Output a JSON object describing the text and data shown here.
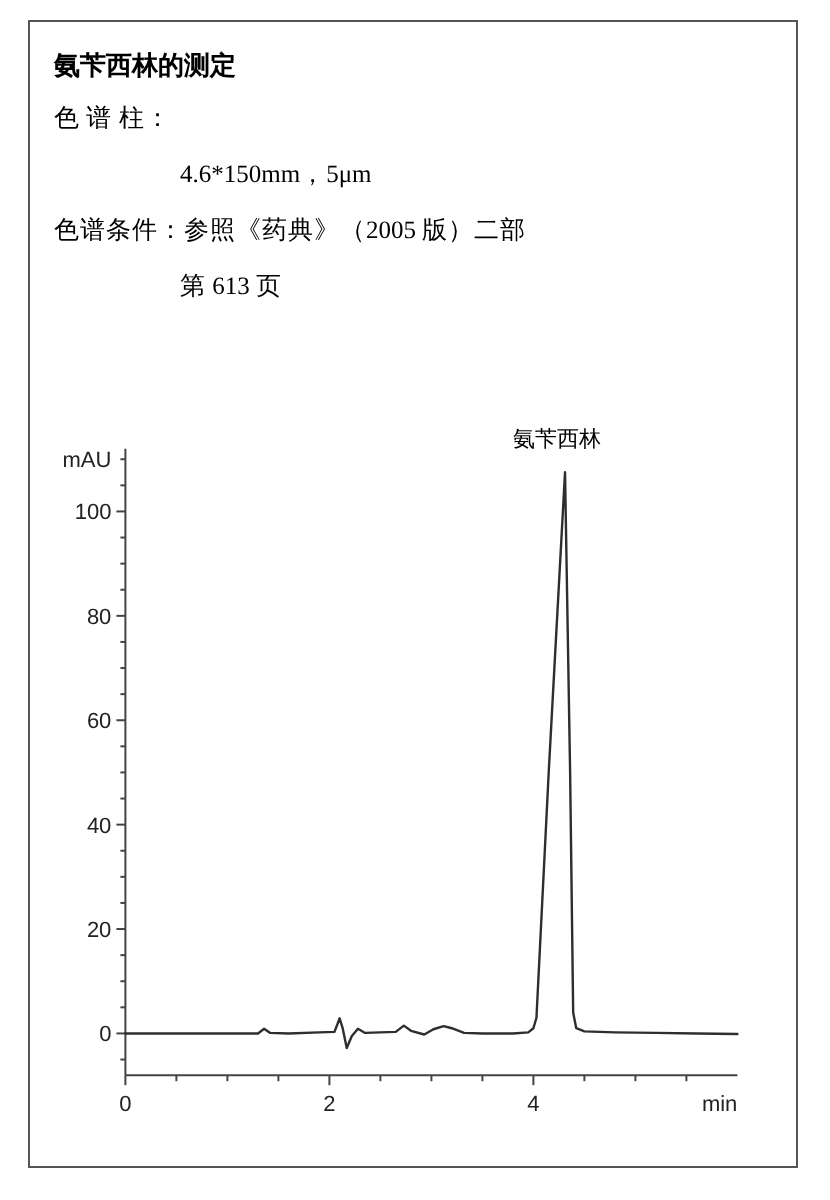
{
  "chart_data": {
    "type": "line",
    "title": "氨苄西林的测定",
    "annotations": [
      "色 谱 柱：",
      "4.6*150mm，5μm",
      "色谱条件：参照《药典》（2005 版）二部",
      "第 613 页",
      {
        "text": "氨苄西林",
        "x": 4.31,
        "y": 107.5
      }
    ],
    "xlabel": "min",
    "ylabel": "mAU",
    "color": "#2e2e2e",
    "x": [
      0,
      0.5,
      1.0,
      1.3,
      1.36,
      1.42,
      1.6,
      1.9,
      2.05,
      2.1,
      2.13,
      2.17,
      2.22,
      2.28,
      2.35,
      2.5,
      2.65,
      2.73,
      2.8,
      2.93,
      3.02,
      3.12,
      3.2,
      3.32,
      3.5,
      3.8,
      3.95,
      4.0,
      4.03,
      4.15,
      4.31,
      4.36,
      4.39,
      4.42,
      4.5,
      4.8,
      5.2,
      5.6,
      6.0
    ],
    "values": [
      0,
      0,
      0,
      0,
      0.9,
      0.1,
      0,
      0.2,
      0.3,
      2.9,
      1.0,
      -2.8,
      -0.5,
      0.9,
      0.1,
      0.2,
      0.3,
      1.5,
      0.5,
      -0.2,
      0.8,
      1.4,
      1.0,
      0.1,
      0,
      0,
      0.2,
      1.0,
      3.0,
      50,
      107.5,
      50,
      4,
      1.0,
      0.4,
      0.2,
      0.1,
      0,
      -0.1
    ],
    "xlim": [
      0,
      6
    ],
    "ylim": [
      -8,
      112
    ],
    "xticks": [
      0,
      {
        "value": 0.5,
        "label": null
      },
      {
        "value": 1,
        "label": null
      },
      {
        "value": 1.5,
        "label": null
      },
      2,
      {
        "value": 2.5,
        "label": null
      },
      {
        "value": 3,
        "label": null
      },
      {
        "value": 3.5,
        "label": null
      },
      4,
      {
        "value": 4.5,
        "label": null
      },
      {
        "value": 5,
        "label": null
      },
      {
        "value": 5.5,
        "label": null
      }
    ],
    "yticks": [
      {
        "value": -5,
        "label": null
      },
      0,
      {
        "value": 5,
        "label": null
      },
      {
        "value": 10,
        "label": null
      },
      {
        "value": 15,
        "label": null
      },
      20,
      {
        "value": 25,
        "label": null
      },
      {
        "value": 30,
        "label": null
      },
      {
        "value": 35,
        "label": null
      },
      40,
      {
        "value": 45,
        "label": null
      },
      {
        "value": 50,
        "label": null
      },
      {
        "value": 55,
        "label": null
      },
      60,
      {
        "value": 65,
        "label": null
      },
      {
        "value": 70,
        "label": null
      },
      {
        "value": 75,
        "label": null
      },
      80,
      {
        "value": 85,
        "label": null
      },
      {
        "value": 90,
        "label": null
      },
      {
        "value": 95,
        "label": null
      },
      100,
      {
        "value": 105,
        "label": null
      },
      {
        "value": 110,
        "label": null
      }
    ]
  }
}
